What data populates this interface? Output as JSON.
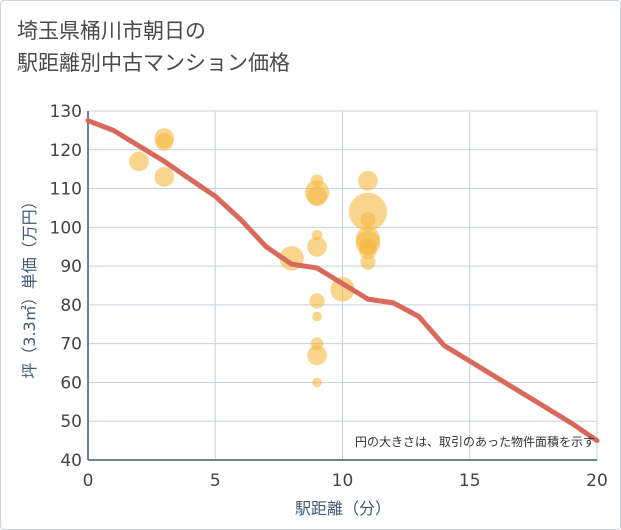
{
  "chart_data": {
    "type": "scatter",
    "title_lines": [
      "埼玉県桶川市朝日の",
      "駅距離別中古マンション価格"
    ],
    "xlabel": "駅距離（分）",
    "ylabel": "坪（3.3㎡）単価（万円）",
    "xlim": [
      0,
      20
    ],
    "ylim": [
      40,
      130
    ],
    "xticks": [
      0,
      5,
      10,
      15,
      20
    ],
    "yticks": [
      40,
      50,
      60,
      70,
      80,
      90,
      100,
      110,
      120,
      130
    ],
    "note": "円の大きさは、取引のあった物件面積を示す",
    "colors": {
      "bubble": "#f5b942",
      "line": "#d9695a",
      "grid": "#c8d0db",
      "axis": "#3f5a78"
    },
    "scatter": [
      {
        "x": 2,
        "y": 117,
        "size": 3
      },
      {
        "x": 3,
        "y": 123,
        "size": 3
      },
      {
        "x": 3,
        "y": 122,
        "size": 2.5
      },
      {
        "x": 3,
        "y": 113,
        "size": 3
      },
      {
        "x": 8,
        "y": 92,
        "size": 4
      },
      {
        "x": 9,
        "y": 112,
        "size": 1.5
      },
      {
        "x": 9,
        "y": 109,
        "size": 4
      },
      {
        "x": 9,
        "y": 108,
        "size": 3
      },
      {
        "x": 9,
        "y": 98,
        "size": 1
      },
      {
        "x": 9,
        "y": 95,
        "size": 3
      },
      {
        "x": 9,
        "y": 81,
        "size": 2
      },
      {
        "x": 9,
        "y": 77,
        "size": 0.8
      },
      {
        "x": 9,
        "y": 70,
        "size": 1.5
      },
      {
        "x": 9,
        "y": 67,
        "size": 3
      },
      {
        "x": 9,
        "y": 60,
        "size": 0.8
      },
      {
        "x": 10,
        "y": 84,
        "size": 4
      },
      {
        "x": 11,
        "y": 112,
        "size": 3
      },
      {
        "x": 11,
        "y": 104,
        "size": 7
      },
      {
        "x": 11,
        "y": 102,
        "size": 2
      },
      {
        "x": 11,
        "y": 97,
        "size": 4
      },
      {
        "x": 11,
        "y": 96,
        "size": 4
      },
      {
        "x": 11,
        "y": 95,
        "size": 2.5
      },
      {
        "x": 11,
        "y": 94,
        "size": 2.5
      },
      {
        "x": 11,
        "y": 91,
        "size": 2
      }
    ],
    "trend": [
      {
        "x": 0,
        "y": 127.5
      },
      {
        "x": 1,
        "y": 125
      },
      {
        "x": 2,
        "y": 121
      },
      {
        "x": 3,
        "y": 117
      },
      {
        "x": 4,
        "y": 112.5
      },
      {
        "x": 5,
        "y": 108
      },
      {
        "x": 6,
        "y": 102
      },
      {
        "x": 7,
        "y": 95
      },
      {
        "x": 8,
        "y": 90.5
      },
      {
        "x": 9,
        "y": 89.5
      },
      {
        "x": 10,
        "y": 85.5
      },
      {
        "x": 11,
        "y": 81.5
      },
      {
        "x": 12,
        "y": 80.5
      },
      {
        "x": 13,
        "y": 77
      },
      {
        "x": 14,
        "y": 69.5
      },
      {
        "x": 15,
        "y": 65.5
      },
      {
        "x": 16,
        "y": 61.5
      },
      {
        "x": 17,
        "y": 57.5
      },
      {
        "x": 18,
        "y": 53.5
      },
      {
        "x": 19,
        "y": 49.5
      },
      {
        "x": 20,
        "y": 45
      }
    ]
  }
}
